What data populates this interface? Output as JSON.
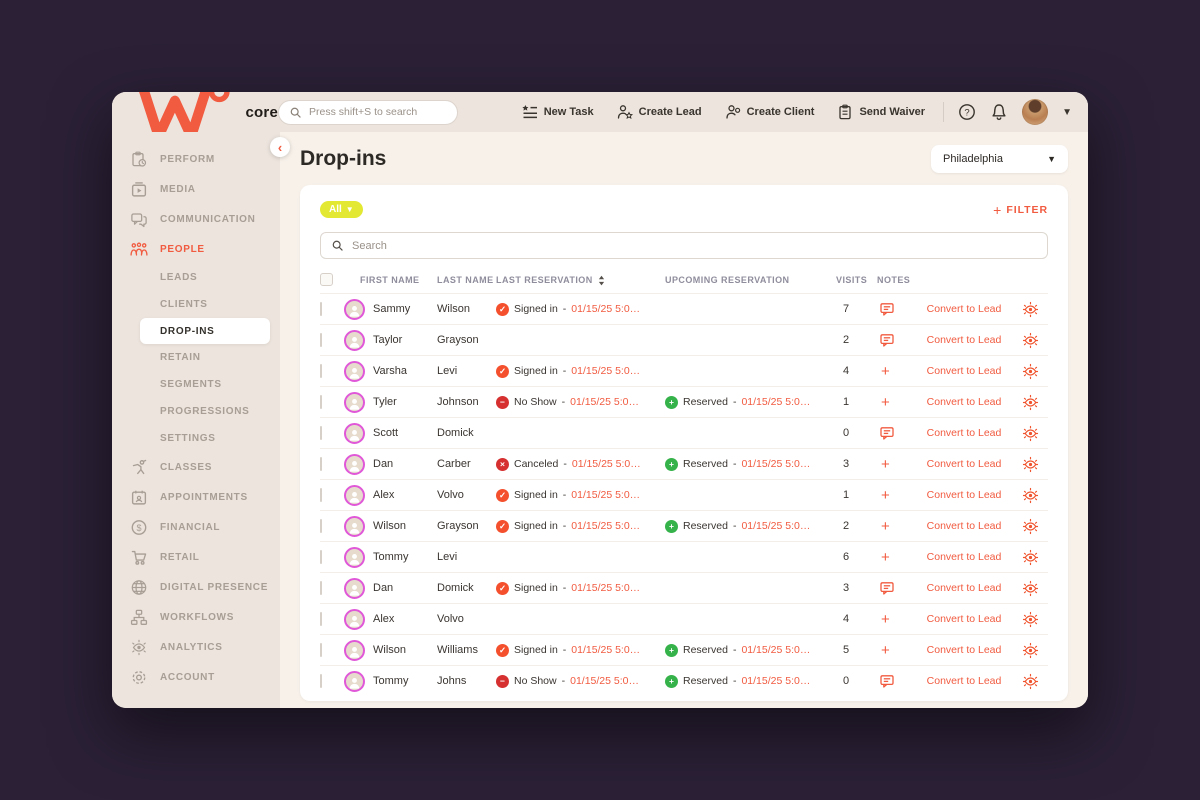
{
  "topbar": {
    "logo_text": "core",
    "search_placeholder": "Press shift+S to search",
    "actions": [
      {
        "name": "new-task-button",
        "label": "New Task",
        "icon": "task-list-icon"
      },
      {
        "name": "create-lead-button",
        "label": "Create Lead",
        "icon": "person-star-icon"
      },
      {
        "name": "create-client-button",
        "label": "Create Client",
        "icon": "person-add-icon"
      },
      {
        "name": "send-waiver-button",
        "label": "Send Waiver",
        "icon": "clipboard-icon"
      }
    ]
  },
  "sidebar": {
    "items": [
      {
        "label": "PERFORM",
        "icon": "perform-icon"
      },
      {
        "label": "MEDIA",
        "icon": "media-icon"
      },
      {
        "label": "COMMUNICATION",
        "icon": "communication-icon"
      },
      {
        "label": "PEOPLE",
        "icon": "people-icon",
        "active": true
      },
      {
        "label": "LEADS",
        "level": "sub"
      },
      {
        "label": "CLIENTS",
        "level": "sub"
      },
      {
        "label": "DROP-INS",
        "level": "sub",
        "selected": true
      },
      {
        "label": "RETAIN",
        "level": "sub"
      },
      {
        "label": "SEGMENTS",
        "level": "sub"
      },
      {
        "label": "PROGRESSIONS",
        "level": "sub"
      },
      {
        "label": "SETTINGS",
        "level": "sub"
      },
      {
        "label": "CLASSES",
        "icon": "classes-icon"
      },
      {
        "label": "APPOINTMENTS",
        "icon": "appointments-icon"
      },
      {
        "label": "FINANCIAL",
        "icon": "financial-icon"
      },
      {
        "label": "RETAIL",
        "icon": "retail-icon"
      },
      {
        "label": "DIGITAL PRESENCE",
        "icon": "digital-presence-icon"
      },
      {
        "label": "WORKFLOWS",
        "icon": "workflows-icon"
      },
      {
        "label": "ANALYTICS",
        "icon": "analytics-icon"
      },
      {
        "label": "ACCOUNT",
        "icon": "account-icon"
      }
    ]
  },
  "page": {
    "title": "Drop-ins",
    "location_selector": "Philadelphia"
  },
  "toolbar": {
    "segment_badge": "All",
    "filter_label": "FILTER",
    "search_placeholder": "Search"
  },
  "statuses": {
    "signed-in": {
      "glyph": "✓",
      "color": "#f4502e"
    },
    "no-show": {
      "glyph": "−",
      "color": "#d63030"
    },
    "canceled": {
      "glyph": "×",
      "color": "#d63030"
    },
    "reserved": {
      "glyph": "+",
      "color": "#35b24a"
    }
  },
  "table": {
    "headers": [
      "FIRST NAME",
      "LAST NAME",
      "LAST RESERVATION",
      "UPCOMING RESERVATION",
      "VISITS",
      "NOTES"
    ],
    "row_action": "Convert to Lead",
    "rows": [
      {
        "first": "Sammy",
        "last": "Wilson",
        "last_reservation": {
          "type": "signed-in",
          "label": "Signed in",
          "date": "01/15/25 5:0…"
        },
        "upcoming_reservation": null,
        "visits": "7",
        "notes_icon": "note"
      },
      {
        "first": "Taylor",
        "last": "Grayson",
        "last_reservation": null,
        "upcoming_reservation": null,
        "visits": "2",
        "notes_icon": "note"
      },
      {
        "first": "Varsha",
        "last": "Levi",
        "last_reservation": {
          "type": "signed-in",
          "label": "Signed in",
          "date": "01/15/25 5:0…"
        },
        "upcoming_reservation": null,
        "visits": "4",
        "notes_icon": "add"
      },
      {
        "first": "Tyler",
        "last": "Johnson",
        "last_reservation": {
          "type": "no-show",
          "label": "No Show",
          "date": "01/15/25 5:0…"
        },
        "upcoming_reservation": {
          "type": "reserved",
          "label": "Reserved",
          "date": "01/15/25 5:0…"
        },
        "visits": "1",
        "notes_icon": "add"
      },
      {
        "first": "Scott",
        "last": "Domick",
        "last_reservation": null,
        "upcoming_reservation": null,
        "visits": "0",
        "notes_icon": "note"
      },
      {
        "first": "Dan",
        "last": "Carber",
        "last_reservation": {
          "type": "canceled",
          "label": "Canceled",
          "date": "01/15/25 5:0…"
        },
        "upcoming_reservation": {
          "type": "reserved",
          "label": "Reserved",
          "date": "01/15/25 5:0…"
        },
        "visits": "3",
        "notes_icon": "add"
      },
      {
        "first": "Alex",
        "last": "Volvo",
        "last_reservation": {
          "type": "signed-in",
          "label": "Signed in",
          "date": "01/15/25 5:0…"
        },
        "upcoming_reservation": null,
        "visits": "1",
        "notes_icon": "add"
      },
      {
        "first": "Wilson",
        "last": "Grayson",
        "last_reservation": {
          "type": "signed-in",
          "label": "Signed in",
          "date": "01/15/25 5:0…"
        },
        "upcoming_reservation": {
          "type": "reserved",
          "label": "Reserved",
          "date": "01/15/25 5:0…"
        },
        "visits": "2",
        "notes_icon": "add"
      },
      {
        "first": "Tommy",
        "last": "Levi",
        "last_reservation": null,
        "upcoming_reservation": null,
        "visits": "6",
        "notes_icon": "add"
      },
      {
        "first": "Dan",
        "last": "Domick",
        "last_reservation": {
          "type": "signed-in",
          "label": "Signed in",
          "date": "01/15/25 5:0…"
        },
        "upcoming_reservation": null,
        "visits": "3",
        "notes_icon": "note"
      },
      {
        "first": "Alex",
        "last": "Volvo",
        "last_reservation": null,
        "upcoming_reservation": null,
        "visits": "4",
        "notes_icon": "add"
      },
      {
        "first": "Wilson",
        "last": "Williams",
        "last_reservation": {
          "type": "signed-in",
          "label": "Signed in",
          "date": "01/15/25 5:0…"
        },
        "upcoming_reservation": {
          "type": "reserved",
          "label": "Reserved",
          "date": "01/15/25 5:0…"
        },
        "visits": "5",
        "notes_icon": "add"
      },
      {
        "first": "Tommy",
        "last": "Johns",
        "last_reservation": {
          "type": "no-show",
          "label": "No Show",
          "date": "01/15/25 5:0…"
        },
        "upcoming_reservation": {
          "type": "reserved",
          "label": "Reserved",
          "date": "01/15/25 5:0…"
        },
        "visits": "0",
        "notes_icon": "note"
      }
    ]
  },
  "colors": {
    "accent": "#f15b40",
    "badge_yellow": "#e3e833",
    "reserved_green": "#35b24a",
    "status_red": "#d63030",
    "avatar_ring": "#e058d8",
    "background_dark": "#2b2036",
    "surface_beige": "#ece4dd",
    "surface_light": "#f7f1ea"
  }
}
